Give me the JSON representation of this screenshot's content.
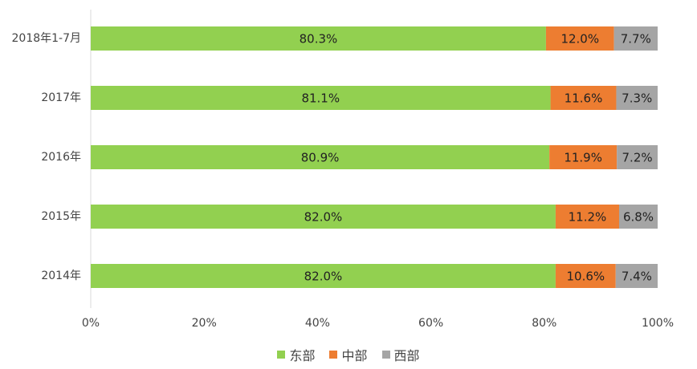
{
  "chart_data": {
    "type": "bar",
    "orientation": "horizontal",
    "stacked": true,
    "percent_stacked": true,
    "categories": [
      "2018年1-7月",
      "2017年",
      "2016年",
      "2015年",
      "2014年"
    ],
    "series": [
      {
        "name": "东部",
        "color": "#92d050",
        "values": [
          80.3,
          81.1,
          80.9,
          82.0,
          82.0
        ],
        "labels": [
          "80.3%",
          "81.1%",
          "80.9%",
          "82.0%",
          "82.0%"
        ]
      },
      {
        "name": "中部",
        "color": "#ed7d31",
        "values": [
          12.0,
          11.6,
          11.9,
          11.2,
          10.6
        ],
        "labels": [
          "12.0%",
          "11.6%",
          "11.9%",
          "11.2%",
          "10.6%"
        ]
      },
      {
        "name": "西部",
        "color": "#a5a5a5",
        "values": [
          7.7,
          7.3,
          7.2,
          6.8,
          7.4
        ],
        "labels": [
          "7.7%",
          "7.3%",
          "7.2%",
          "6.8%",
          "7.4%"
        ]
      }
    ],
    "x_ticks": [
      "0%",
      "20%",
      "40%",
      "60%",
      "80%",
      "100%"
    ],
    "xlim": [
      0,
      100
    ],
    "grid": false,
    "legend_position": "bottom"
  }
}
